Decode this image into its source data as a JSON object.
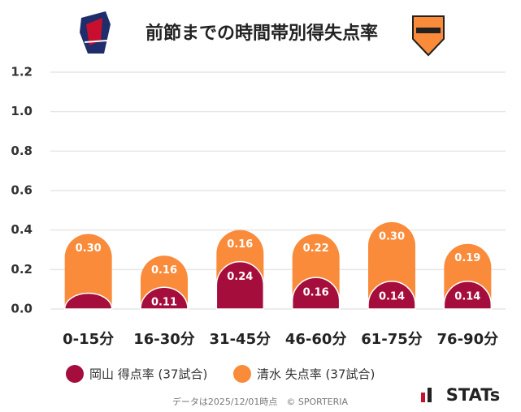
{
  "chart_data": {
    "type": "stacked_bar",
    "title": "前節までの時間帯別得失点率",
    "categories": [
      "0-15分",
      "16-30分",
      "31-45分",
      "46-60分",
      "61-75分",
      "76-90分"
    ],
    "series": [
      {
        "name": "岡山 得点率 (37試合)",
        "color": "#a50d3c",
        "values": [
          0.08,
          0.11,
          0.24,
          0.16,
          0.14,
          0.14
        ],
        "value_labels": [
          null,
          "0.11",
          "0.24",
          "0.16",
          "0.14",
          "0.14"
        ]
      },
      {
        "name": "清水 失点率 (37試合)",
        "color": "#f98b3a",
        "values": [
          0.3,
          0.16,
          0.16,
          0.22,
          0.3,
          0.19
        ],
        "value_labels": [
          "0.30",
          "0.16",
          "0.16",
          "0.22",
          "0.30",
          "0.19"
        ]
      }
    ],
    "ylim": [
      0,
      1.2
    ],
    "yticks": [
      {
        "value": 0,
        "label": "0.0"
      },
      0.2,
      0.4,
      0.6,
      0.8,
      {
        "value": 1,
        "label": "1.0"
      },
      1.2
    ],
    "grid": true,
    "footer": "データは2025/12/01時点　© SPORTERIA",
    "brand": "STATs"
  }
}
